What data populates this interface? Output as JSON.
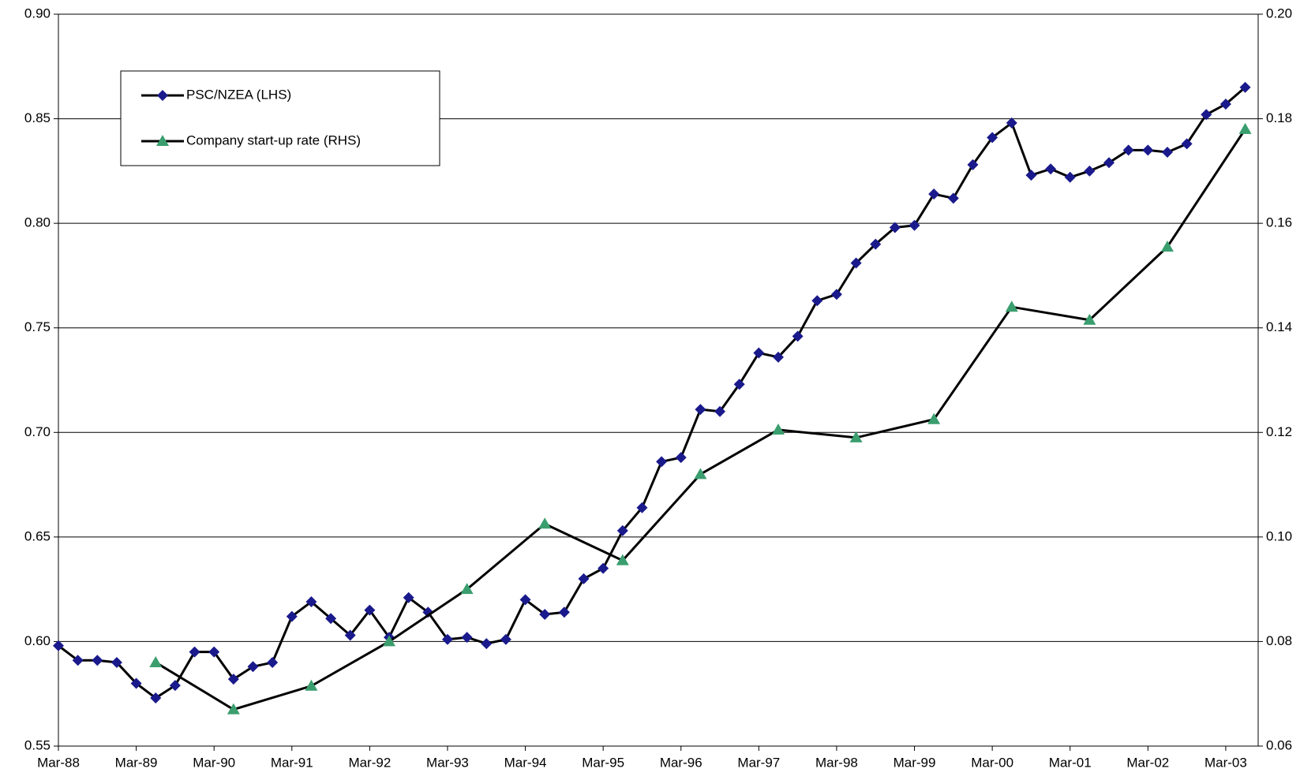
{
  "chart_data": {
    "type": "line",
    "series": [
      {
        "name": "PSC/NZEA (LHS)",
        "color": "#1a1a8c",
        "line_color": "#000000",
        "marker": "diamond",
        "axis": "y",
        "x": [
          "1988-03",
          "1988-06",
          "1988-09",
          "1988-12",
          "1989-03",
          "1989-06",
          "1989-09",
          "1989-12",
          "1990-03",
          "1990-06",
          "1990-09",
          "1990-12",
          "1991-03",
          "1991-06",
          "1991-09",
          "1991-12",
          "1992-03",
          "1992-06",
          "1992-09",
          "1992-12",
          "1993-03",
          "1993-06",
          "1993-09",
          "1993-12",
          "1994-03",
          "1994-06",
          "1994-09",
          "1994-12",
          "1995-03",
          "1995-06",
          "1995-09",
          "1995-12",
          "1996-03",
          "1996-06",
          "1996-09",
          "1996-12",
          "1997-03",
          "1997-06",
          "1997-09",
          "1997-12",
          "1998-03",
          "1998-06",
          "1998-09",
          "1998-12",
          "1999-03",
          "1999-06",
          "1999-09",
          "1999-12",
          "2000-03",
          "2000-06",
          "2000-09",
          "2000-12",
          "2001-03",
          "2001-06",
          "2001-09",
          "2001-12",
          "2002-03",
          "2002-06",
          "2002-09",
          "2002-12",
          "2003-03",
          "2003-06"
        ],
        "values": [
          0.598,
          0.591,
          0.591,
          0.59,
          0.58,
          0.573,
          0.579,
          0.595,
          0.595,
          0.582,
          0.588,
          0.59,
          0.612,
          0.619,
          0.611,
          0.603,
          0.615,
          0.602,
          0.621,
          0.614,
          0.601,
          0.602,
          0.599,
          0.601,
          0.62,
          0.613,
          0.614,
          0.63,
          0.635,
          0.653,
          0.664,
          0.686,
          0.688,
          0.711,
          0.71,
          0.723,
          0.738,
          0.736,
          0.746,
          0.763,
          0.766,
          0.781,
          0.79,
          0.798,
          0.799,
          0.814,
          0.812,
          0.828,
          0.841,
          0.848,
          0.823,
          0.826,
          0.822,
          0.825,
          0.829,
          0.835,
          0.835,
          0.834,
          0.838,
          0.852,
          0.857,
          0.865
        ]
      },
      {
        "name": "Company start-up rate (RHS)",
        "color": "#3a9e6e",
        "line_color": "#000000",
        "marker": "triangle",
        "axis": "y2",
        "x": [
          "1989-06",
          "1990-06",
          "1991-06",
          "1992-06",
          "1993-06",
          "1994-06",
          "1995-06",
          "1996-06",
          "1997-06",
          "1998-06",
          "1999-06",
          "2000-06",
          "2001-06",
          "2002-06",
          "2003-06"
        ],
        "values": [
          0.076,
          0.067,
          0.0715,
          0.08,
          0.09,
          0.1025,
          0.0955,
          0.112,
          0.1205,
          0.119,
          0.1225,
          0.144,
          0.1415,
          0.1555,
          0.178
        ]
      }
    ],
    "xlim": [
      "1988-03",
      "2003-08"
    ],
    "xticks": [
      {
        "value": "1988-03",
        "label": "Mar-88"
      },
      {
        "value": "1989-03",
        "label": "Mar-89"
      },
      {
        "value": "1990-03",
        "label": "Mar-90"
      },
      {
        "value": "1991-03",
        "label": "Mar-91"
      },
      {
        "value": "1992-03",
        "label": "Mar-92"
      },
      {
        "value": "1993-03",
        "label": "Mar-93"
      },
      {
        "value": "1994-03",
        "label": "Mar-94"
      },
      {
        "value": "1995-03",
        "label": "Mar-95"
      },
      {
        "value": "1996-03",
        "label": "Mar-96"
      },
      {
        "value": "1997-03",
        "label": "Mar-97"
      },
      {
        "value": "1998-03",
        "label": "Mar-98"
      },
      {
        "value": "1999-03",
        "label": "Mar-99"
      },
      {
        "value": "2000-03",
        "label": "Mar-00"
      },
      {
        "value": "2001-03",
        "label": "Mar-01"
      },
      {
        "value": "2002-03",
        "label": "Mar-02"
      },
      {
        "value": "2003-03",
        "label": "Mar-03"
      }
    ],
    "ylim": [
      0.55,
      0.9
    ],
    "yticks": [
      0.55,
      {
        "value": 0.6,
        "label": "0.60"
      },
      0.65,
      {
        "value": 0.7,
        "label": "0.70"
      },
      0.75,
      {
        "value": 0.8,
        "label": "0.80"
      },
      0.85,
      {
        "value": 0.9,
        "label": "0.90"
      }
    ],
    "y2lim": [
      0.06,
      0.2
    ],
    "y2ticks": [
      0.06,
      0.08,
      {
        "value": 0.1,
        "label": "0.10"
      },
      0.12,
      0.14,
      0.16,
      0.18,
      {
        "value": 0.2,
        "label": "0.20"
      }
    ],
    "grid": true,
    "legend": "upper-left"
  }
}
